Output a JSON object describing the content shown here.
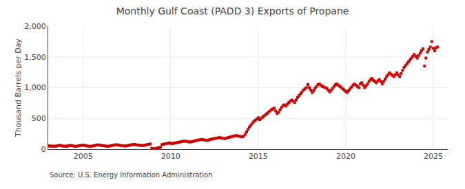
{
  "chart_data": {
    "type": "scatter",
    "title": "Monthly Gulf Coast (PADD 3) Exports of Propane",
    "ylabel": "Thousand Barrels per Day",
    "annotations": [
      "Source: U.S. Energy Information Administration"
    ],
    "color": "#cc0000",
    "marker": "square",
    "grid": true,
    "xlim": [
      2003.0,
      2025.83
    ],
    "xticks": [
      2005,
      2010,
      2015,
      2020,
      2025
    ],
    "ylim": [
      0,
      2000
    ],
    "yticks": [
      0,
      500,
      {
        "value": 1000,
        "label": "1,000"
      },
      {
        "value": 1500,
        "label": "1,500"
      },
      {
        "value": 2000,
        "label": "2,000"
      }
    ],
    "x": [
      2003.0,
      2003.083,
      2003.167,
      2003.25,
      2003.333,
      2003.417,
      2003.5,
      2003.583,
      2003.667,
      2003.75,
      2003.833,
      2003.917,
      2004.0,
      2004.083,
      2004.167,
      2004.25,
      2004.333,
      2004.417,
      2004.5,
      2004.583,
      2004.667,
      2004.75,
      2004.833,
      2004.917,
      2005.0,
      2005.083,
      2005.167,
      2005.25,
      2005.333,
      2005.417,
      2005.5,
      2005.583,
      2005.667,
      2005.75,
      2005.833,
      2005.917,
      2006.0,
      2006.083,
      2006.167,
      2006.25,
      2006.333,
      2006.417,
      2006.5,
      2006.583,
      2006.667,
      2006.75,
      2006.833,
      2006.917,
      2007.0,
      2007.083,
      2007.167,
      2007.25,
      2007.333,
      2007.417,
      2007.5,
      2007.583,
      2007.667,
      2007.75,
      2007.833,
      2007.917,
      2008.0,
      2008.083,
      2008.167,
      2008.25,
      2008.333,
      2008.417,
      2008.5,
      2008.583,
      2008.667,
      2008.75,
      2008.833,
      2008.917,
      2009.0,
      2009.083,
      2009.167,
      2009.25,
      2009.333,
      2009.417,
      2009.5,
      2009.583,
      2009.667,
      2009.75,
      2009.833,
      2009.917,
      2010.0,
      2010.083,
      2010.167,
      2010.25,
      2010.333,
      2010.417,
      2010.5,
      2010.583,
      2010.667,
      2010.75,
      2010.833,
      2010.917,
      2011.0,
      2011.083,
      2011.167,
      2011.25,
      2011.333,
      2011.417,
      2011.5,
      2011.583,
      2011.667,
      2011.75,
      2011.833,
      2011.917,
      2012.0,
      2012.083,
      2012.167,
      2012.25,
      2012.333,
      2012.417,
      2012.5,
      2012.583,
      2012.667,
      2012.75,
      2012.833,
      2012.917,
      2013.0,
      2013.083,
      2013.167,
      2013.25,
      2013.333,
      2013.417,
      2013.5,
      2013.583,
      2013.667,
      2013.75,
      2013.833,
      2013.917,
      2014.0,
      2014.083,
      2014.167,
      2014.25,
      2014.333,
      2014.417,
      2014.5,
      2014.583,
      2014.667,
      2014.75,
      2014.833,
      2014.917,
      2015.0,
      2015.083,
      2015.167,
      2015.25,
      2015.333,
      2015.417,
      2015.5,
      2015.583,
      2015.667,
      2015.75,
      2015.833,
      2015.917,
      2016.0,
      2016.083,
      2016.167,
      2016.25,
      2016.333,
      2016.417,
      2016.5,
      2016.583,
      2016.667,
      2016.75,
      2016.833,
      2016.917,
      2017.0,
      2017.083,
      2017.167,
      2017.25,
      2017.333,
      2017.417,
      2017.5,
      2017.583,
      2017.667,
      2017.75,
      2017.833,
      2017.917,
      2018.0,
      2018.083,
      2018.167,
      2018.25,
      2018.333,
      2018.417,
      2018.5,
      2018.583,
      2018.667,
      2018.75,
      2018.833,
      2018.917,
      2019.0,
      2019.083,
      2019.167,
      2019.25,
      2019.333,
      2019.417,
      2019.5,
      2019.583,
      2019.667,
      2019.75,
      2019.833,
      2019.917,
      2020.0,
      2020.083,
      2020.167,
      2020.25,
      2020.333,
      2020.417,
      2020.5,
      2020.583,
      2020.667,
      2020.75,
      2020.833,
      2020.917,
      2021.0,
      2021.083,
      2021.167,
      2021.25,
      2021.333,
      2021.417,
      2021.5,
      2021.583,
      2021.667,
      2021.75,
      2021.833,
      2021.917,
      2022.0,
      2022.083,
      2022.167,
      2022.25,
      2022.333,
      2022.417,
      2022.5,
      2022.583,
      2022.667,
      2022.75,
      2022.833,
      2022.917,
      2023.0,
      2023.083,
      2023.167,
      2023.25,
      2023.333,
      2023.417,
      2023.5,
      2023.583,
      2023.667,
      2023.75,
      2023.833,
      2023.917,
      2024.0,
      2024.083,
      2024.167,
      2024.25,
      2024.333,
      2024.417,
      2024.5,
      2024.583,
      2024.667,
      2024.75,
      2024.833,
      2024.917,
      2025.0,
      2025.083,
      2025.167,
      2025.25
    ],
    "values": [
      55,
      48,
      52,
      45,
      50,
      47,
      53,
      58,
      62,
      55,
      50,
      48,
      52,
      45,
      55,
      60,
      58,
      52,
      48,
      45,
      50,
      55,
      58,
      62,
      65,
      60,
      55,
      50,
      48,
      45,
      50,
      55,
      60,
      65,
      70,
      68,
      62,
      58,
      55,
      52,
      48,
      45,
      50,
      55,
      60,
      65,
      70,
      72,
      68,
      62,
      58,
      55,
      52,
      50,
      55,
      60,
      65,
      70,
      75,
      78,
      72,
      68,
      65,
      62,
      60,
      58,
      62,
      68,
      75,
      80,
      85,
      15,
      5,
      8,
      12,
      18,
      25,
      30,
      75,
      80,
      85,
      90,
      95,
      100,
      95,
      90,
      95,
      100,
      105,
      110,
      115,
      120,
      125,
      130,
      128,
      125,
      120,
      115,
      120,
      125,
      132,
      138,
      142,
      148,
      152,
      158,
      155,
      150,
      145,
      140,
      148,
      155,
      162,
      168,
      172,
      178,
      182,
      188,
      185,
      180,
      175,
      170,
      178,
      185,
      192,
      198,
      205,
      210,
      215,
      220,
      215,
      210,
      205,
      200,
      210,
      240,
      280,
      320,
      360,
      390,
      420,
      450,
      470,
      490,
      510,
      480,
      500,
      520,
      540,
      560,
      580,
      600,
      620,
      640,
      655,
      665,
      620,
      580,
      600,
      640,
      680,
      710,
      720,
      700,
      730,
      760,
      780,
      800,
      780,
      760,
      800,
      840,
      870,
      900,
      930,
      960,
      980,
      1000,
      1050,
      1000,
      960,
      920,
      950,
      990,
      1020,
      1050,
      1060,
      1040,
      1020,
      1010,
      1000,
      990,
      960,
      930,
      960,
      990,
      1020,
      1050,
      1060,
      1040,
      1020,
      1000,
      980,
      960,
      940,
      920,
      950,
      980,
      1010,
      1040,
      1060,
      1040,
      1020,
      1000,
      1060,
      1080,
      1040,
      1000,
      1030,
      1060,
      1100,
      1130,
      1150,
      1120,
      1100,
      1080,
      1110,
      1130,
      1100,
      1060,
      1100,
      1140,
      1180,
      1210,
      1240,
      1220,
      1200,
      1180,
      1210,
      1240,
      1210,
      1180,
      1230,
      1280,
      1330,
      1360,
      1390,
      1420,
      1450,
      1480,
      1510,
      1540,
      1510,
      1480,
      1520,
      1560,
      1600,
      1630,
      1350,
      1480,
      1580,
      1620,
      1660,
      1750,
      1640,
      1600,
      1650,
      1660
    ]
  }
}
